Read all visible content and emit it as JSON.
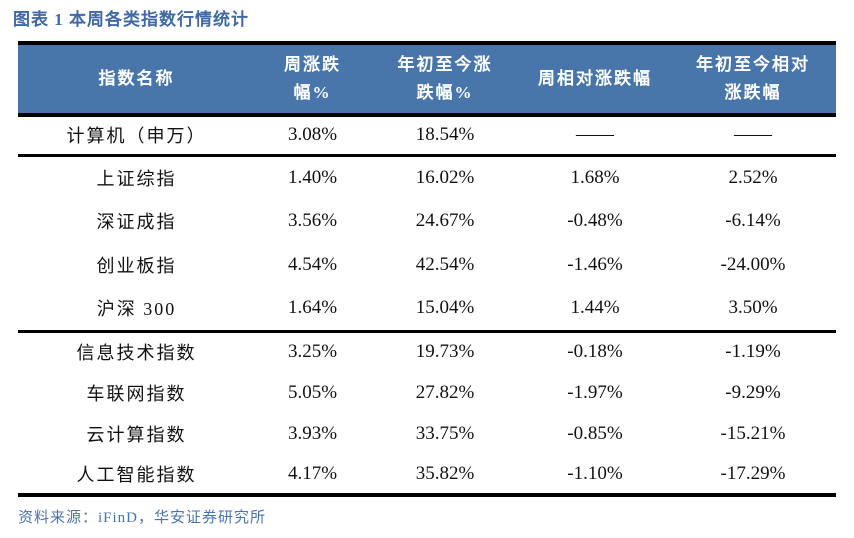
{
  "title": "图表 1 本周各类指数行情统计",
  "colors": {
    "header_bg": "#4876ab",
    "header_text": "#ffffff",
    "title_text": "#3f69a6",
    "footer_text": "#4a74ae",
    "body_text": "#111111",
    "rule": "#000000"
  },
  "table": {
    "columns": [
      "指数名称",
      "周涨跌\n幅%",
      "年初至今涨\n跌幅%",
      "周相对涨跌幅",
      "年初至今相对\n涨跌幅"
    ],
    "rows": [
      {
        "section": 1,
        "name": "计算机（申万）",
        "week": "3.08%",
        "ytd": "18.54%",
        "week_rel": "——",
        "ytd_rel": "——"
      },
      {
        "section": 2,
        "name": "上证综指",
        "week": "1.40%",
        "ytd": "16.02%",
        "week_rel": "1.68%",
        "ytd_rel": "2.52%"
      },
      {
        "section": 2,
        "name": "深证成指",
        "week": "3.56%",
        "ytd": "24.67%",
        "week_rel": "-0.48%",
        "ytd_rel": "-6.14%"
      },
      {
        "section": 2,
        "name": "创业板指",
        "week": "4.54%",
        "ytd": "42.54%",
        "week_rel": "-1.46%",
        "ytd_rel": "-24.00%"
      },
      {
        "section": 2,
        "name": "沪深 300",
        "week": "1.64%",
        "ytd": "15.04%",
        "week_rel": "1.44%",
        "ytd_rel": "3.50%"
      },
      {
        "section": 3,
        "name": "信息技术指数",
        "week": "3.25%",
        "ytd": "19.73%",
        "week_rel": "-0.18%",
        "ytd_rel": "-1.19%"
      },
      {
        "section": 3,
        "name": "车联网指数",
        "week": "5.05%",
        "ytd": "27.82%",
        "week_rel": "-1.97%",
        "ytd_rel": "-9.29%"
      },
      {
        "section": 3,
        "name": "云计算指数",
        "week": "3.93%",
        "ytd": "33.75%",
        "week_rel": "-0.85%",
        "ytd_rel": "-15.21%"
      },
      {
        "section": 3,
        "name": "人工智能指数",
        "week": "4.17%",
        "ytd": "35.82%",
        "week_rel": "-1.10%",
        "ytd_rel": "-17.29%"
      }
    ]
  },
  "footer": {
    "source": "资料来源：iFinD，华安证券研究所"
  }
}
